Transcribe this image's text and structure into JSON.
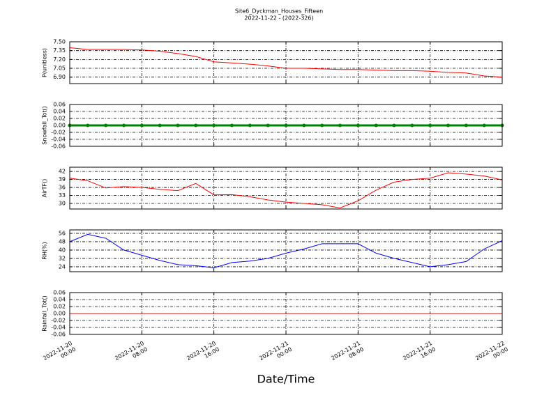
{
  "chart_data": [
    {
      "type": "line",
      "title": "Site6_Dyckman_Houses_Fifteen",
      "subtitle": "2022-11-22 - (2022-326)",
      "ylabel": "P(unitless)",
      "x": [
        "2022-11-20 00:00",
        "2022-11-20 02:00",
        "2022-11-20 04:00",
        "2022-11-20 06:00",
        "2022-11-20 08:00",
        "2022-11-20 10:00",
        "2022-11-20 12:00",
        "2022-11-20 14:00",
        "2022-11-20 16:00",
        "2022-11-20 18:00",
        "2022-11-20 20:00",
        "2022-11-20 22:00",
        "2022-11-21 00:00",
        "2022-11-21 02:00",
        "2022-11-21 04:00",
        "2022-11-21 06:00",
        "2022-11-21 08:00",
        "2022-11-21 10:00",
        "2022-11-21 12:00",
        "2022-11-21 14:00",
        "2022-11-21 16:00",
        "2022-11-21 18:00",
        "2022-11-21 20:00",
        "2022-11-21 22:00",
        "2022-11-22 00:00"
      ],
      "series": [
        {
          "color": "#ff0000",
          "values": [
            7.4,
            7.37,
            7.37,
            7.37,
            7.36,
            7.34,
            7.3,
            7.25,
            7.16,
            7.14,
            7.12,
            7.09,
            7.05,
            7.05,
            7.04,
            7.03,
            7.03,
            7.02,
            7.01,
            7.01,
            7.0,
            6.98,
            6.97,
            6.92,
            6.9
          ]
        }
      ],
      "xlim": [
        "2022-11-20 00:00",
        "2022-11-22 00:00"
      ],
      "xticks": [
        "2022-11-20 00:00",
        "2022-11-20 08:00",
        "2022-11-20 16:00",
        "2022-11-21 00:00",
        "2022-11-21 08:00",
        "2022-11-21 16:00",
        "2022-11-22 00:00"
      ],
      "ylim": [
        6.79,
        7.5
      ],
      "yticks": [
        {
          "value": 6.9,
          "label": "6.90"
        },
        7.05,
        {
          "value": 7.2,
          "label": "7.20"
        },
        7.35,
        {
          "value": 7.5,
          "label": "7.50"
        }
      ],
      "grid": true
    },
    {
      "type": "line",
      "ylabel": "Snowfall_Tot()",
      "marker": true,
      "x": [
        "2022-11-20 00:00",
        "2022-11-20 02:00",
        "2022-11-20 04:00",
        "2022-11-20 06:00",
        "2022-11-20 08:00",
        "2022-11-20 10:00",
        "2022-11-20 12:00",
        "2022-11-20 14:00",
        "2022-11-20 16:00",
        "2022-11-20 18:00",
        "2022-11-20 20:00",
        "2022-11-20 22:00",
        "2022-11-21 00:00",
        "2022-11-21 02:00",
        "2022-11-21 04:00",
        "2022-11-21 06:00",
        "2022-11-21 08:00",
        "2022-11-21 10:00",
        "2022-11-21 12:00",
        "2022-11-21 14:00",
        "2022-11-21 16:00",
        "2022-11-21 18:00",
        "2022-11-21 20:00",
        "2022-11-21 22:00",
        "2022-11-22 00:00"
      ],
      "series": [
        {
          "color": "#008000",
          "values": [
            0,
            0,
            0,
            0,
            0,
            0,
            0,
            0,
            0,
            0,
            0,
            0,
            0,
            0,
            0,
            0,
            0,
            0,
            0,
            0,
            0,
            0,
            0,
            0,
            0
          ]
        }
      ],
      "xlim": [
        "2022-11-20 00:00",
        "2022-11-22 00:00"
      ],
      "xticks": [
        "2022-11-20 00:00",
        "2022-11-20 08:00",
        "2022-11-20 16:00",
        "2022-11-21 00:00",
        "2022-11-21 08:00",
        "2022-11-21 16:00",
        "2022-11-22 00:00"
      ],
      "ylim": [
        -0.06,
        0.06
      ],
      "yticks": [
        -0.06,
        -0.04,
        -0.02,
        {
          "value": 0,
          "label": "0.00"
        },
        0.02,
        0.04,
        0.06
      ],
      "grid": true
    },
    {
      "type": "line",
      "ylabel": "AirTF()",
      "x": [
        "2022-11-20 00:00",
        "2022-11-20 02:00",
        "2022-11-20 04:00",
        "2022-11-20 06:00",
        "2022-11-20 08:00",
        "2022-11-20 10:00",
        "2022-11-20 12:00",
        "2022-11-20 14:00",
        "2022-11-20 16:00",
        "2022-11-20 18:00",
        "2022-11-20 20:00",
        "2022-11-20 22:00",
        "2022-11-21 00:00",
        "2022-11-21 02:00",
        "2022-11-21 04:00",
        "2022-11-21 06:00",
        "2022-11-21 08:00",
        "2022-11-21 10:00",
        "2022-11-21 12:00",
        "2022-11-21 14:00",
        "2022-11-21 16:00",
        "2022-11-21 18:00",
        "2022-11-21 20:00",
        "2022-11-21 22:00",
        "2022-11-22 00:00"
      ],
      "series": [
        {
          "color": "#ff0000",
          "values": [
            39.5,
            38.5,
            35.8,
            36.3,
            36.0,
            35.3,
            34.8,
            37.5,
            33.2,
            33.3,
            32.5,
            31.3,
            30.5,
            30.0,
            29.5,
            28.3,
            31.0,
            35.0,
            38.0,
            39.0,
            39.5,
            41.5,
            41.0,
            40.3,
            38.8
          ]
        }
      ],
      "xlim": [
        "2022-11-20 00:00",
        "2022-11-22 00:00"
      ],
      "xticks": [
        "2022-11-20 00:00",
        "2022-11-20 08:00",
        "2022-11-20 16:00",
        "2022-11-21 00:00",
        "2022-11-21 08:00",
        "2022-11-21 16:00",
        "2022-11-22 00:00"
      ],
      "ylim": [
        27.9,
        43.6
      ],
      "yticks": [
        30,
        33,
        36,
        39,
        42
      ],
      "grid": true
    },
    {
      "type": "line",
      "ylabel": "RH(%)",
      "x": [
        "2022-11-20 00:00",
        "2022-11-20 02:00",
        "2022-11-20 04:00",
        "2022-11-20 06:00",
        "2022-11-20 08:00",
        "2022-11-20 10:00",
        "2022-11-20 12:00",
        "2022-11-20 14:00",
        "2022-11-20 16:00",
        "2022-11-20 18:00",
        "2022-11-20 20:00",
        "2022-11-20 22:00",
        "2022-11-21 00:00",
        "2022-11-21 02:00",
        "2022-11-21 04:00",
        "2022-11-21 06:00",
        "2022-11-21 08:00",
        "2022-11-21 10:00",
        "2022-11-21 12:00",
        "2022-11-21 14:00",
        "2022-11-21 16:00",
        "2022-11-21 18:00",
        "2022-11-21 20:00",
        "2022-11-21 22:00",
        "2022-11-22 00:00"
      ],
      "series": [
        {
          "color": "#0000ff",
          "values": [
            48,
            55,
            51.3,
            40,
            35,
            30,
            26,
            25,
            23,
            28,
            29.5,
            32,
            37,
            41,
            46,
            46,
            46,
            37,
            32,
            28,
            24,
            26,
            29,
            41,
            49
          ]
        }
      ],
      "xlim": [
        "2022-11-20 00:00",
        "2022-11-22 00:00"
      ],
      "xticks": [
        "2022-11-20 00:00",
        "2022-11-20 08:00",
        "2022-11-20 16:00",
        "2022-11-21 00:00",
        "2022-11-21 08:00",
        "2022-11-21 16:00",
        "2022-11-22 00:00"
      ],
      "ylim": [
        19.3,
        59.3
      ],
      "yticks": [
        24,
        32,
        40,
        48,
        56
      ],
      "grid": true
    },
    {
      "type": "line",
      "ylabel": "Rainfall_Tot()",
      "xlabel": "Date/Time",
      "x": [
        "2022-11-20 00:00",
        "2022-11-20 02:00",
        "2022-11-20 04:00",
        "2022-11-20 06:00",
        "2022-11-20 08:00",
        "2022-11-20 10:00",
        "2022-11-20 12:00",
        "2022-11-20 14:00",
        "2022-11-20 16:00",
        "2022-11-20 18:00",
        "2022-11-20 20:00",
        "2022-11-20 22:00",
        "2022-11-21 00:00",
        "2022-11-21 02:00",
        "2022-11-21 04:00",
        "2022-11-21 06:00",
        "2022-11-21 08:00",
        "2022-11-21 10:00",
        "2022-11-21 12:00",
        "2022-11-21 14:00",
        "2022-11-21 16:00",
        "2022-11-21 18:00",
        "2022-11-21 20:00",
        "2022-11-21 22:00",
        "2022-11-22 00:00"
      ],
      "series": [
        {
          "color": "#ff0000",
          "values": [
            0,
            0,
            0,
            0,
            0,
            0,
            0,
            0,
            0,
            0,
            0,
            0,
            0,
            0,
            0,
            0,
            0,
            0,
            0,
            0,
            0,
            0,
            0,
            0,
            0
          ]
        }
      ],
      "xlim": [
        "2022-11-20 00:00",
        "2022-11-22 00:00"
      ],
      "xticks": [
        {
          "value": "2022-11-20 00:00",
          "label": "2022-11-20\n00:00"
        },
        {
          "value": "2022-11-20 08:00",
          "label": "2022-11-20\n08:00"
        },
        {
          "value": "2022-11-20 16:00",
          "label": "2022-11-20\n16:00"
        },
        {
          "value": "2022-11-21 00:00",
          "label": "2022-11-21\n00:00"
        },
        {
          "value": "2022-11-21 08:00",
          "label": "2022-11-21\n08:00"
        },
        {
          "value": "2022-11-21 16:00",
          "label": "2022-11-21\n16:00"
        },
        {
          "value": "2022-11-22 00:00",
          "label": "2022-11-22\n00:00"
        }
      ],
      "ylim": [
        -0.06,
        0.06
      ],
      "yticks": [
        -0.06,
        -0.04,
        -0.02,
        {
          "value": 0,
          "label": "0.00"
        },
        0.02,
        0.04,
        0.06
      ],
      "grid": true
    }
  ]
}
